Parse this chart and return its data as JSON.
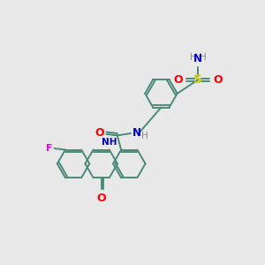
{
  "background_color": "#e8e8e8",
  "bond_color": "#4a8a7a",
  "atom_colors": {
    "O": "#ff0000",
    "N": "#0000cc",
    "S": "#cccc00",
    "F": "#ee00ee",
    "H": "#888888",
    "C": "#4a8a7a"
  },
  "lw": 1.4,
  "r": 0.62
}
